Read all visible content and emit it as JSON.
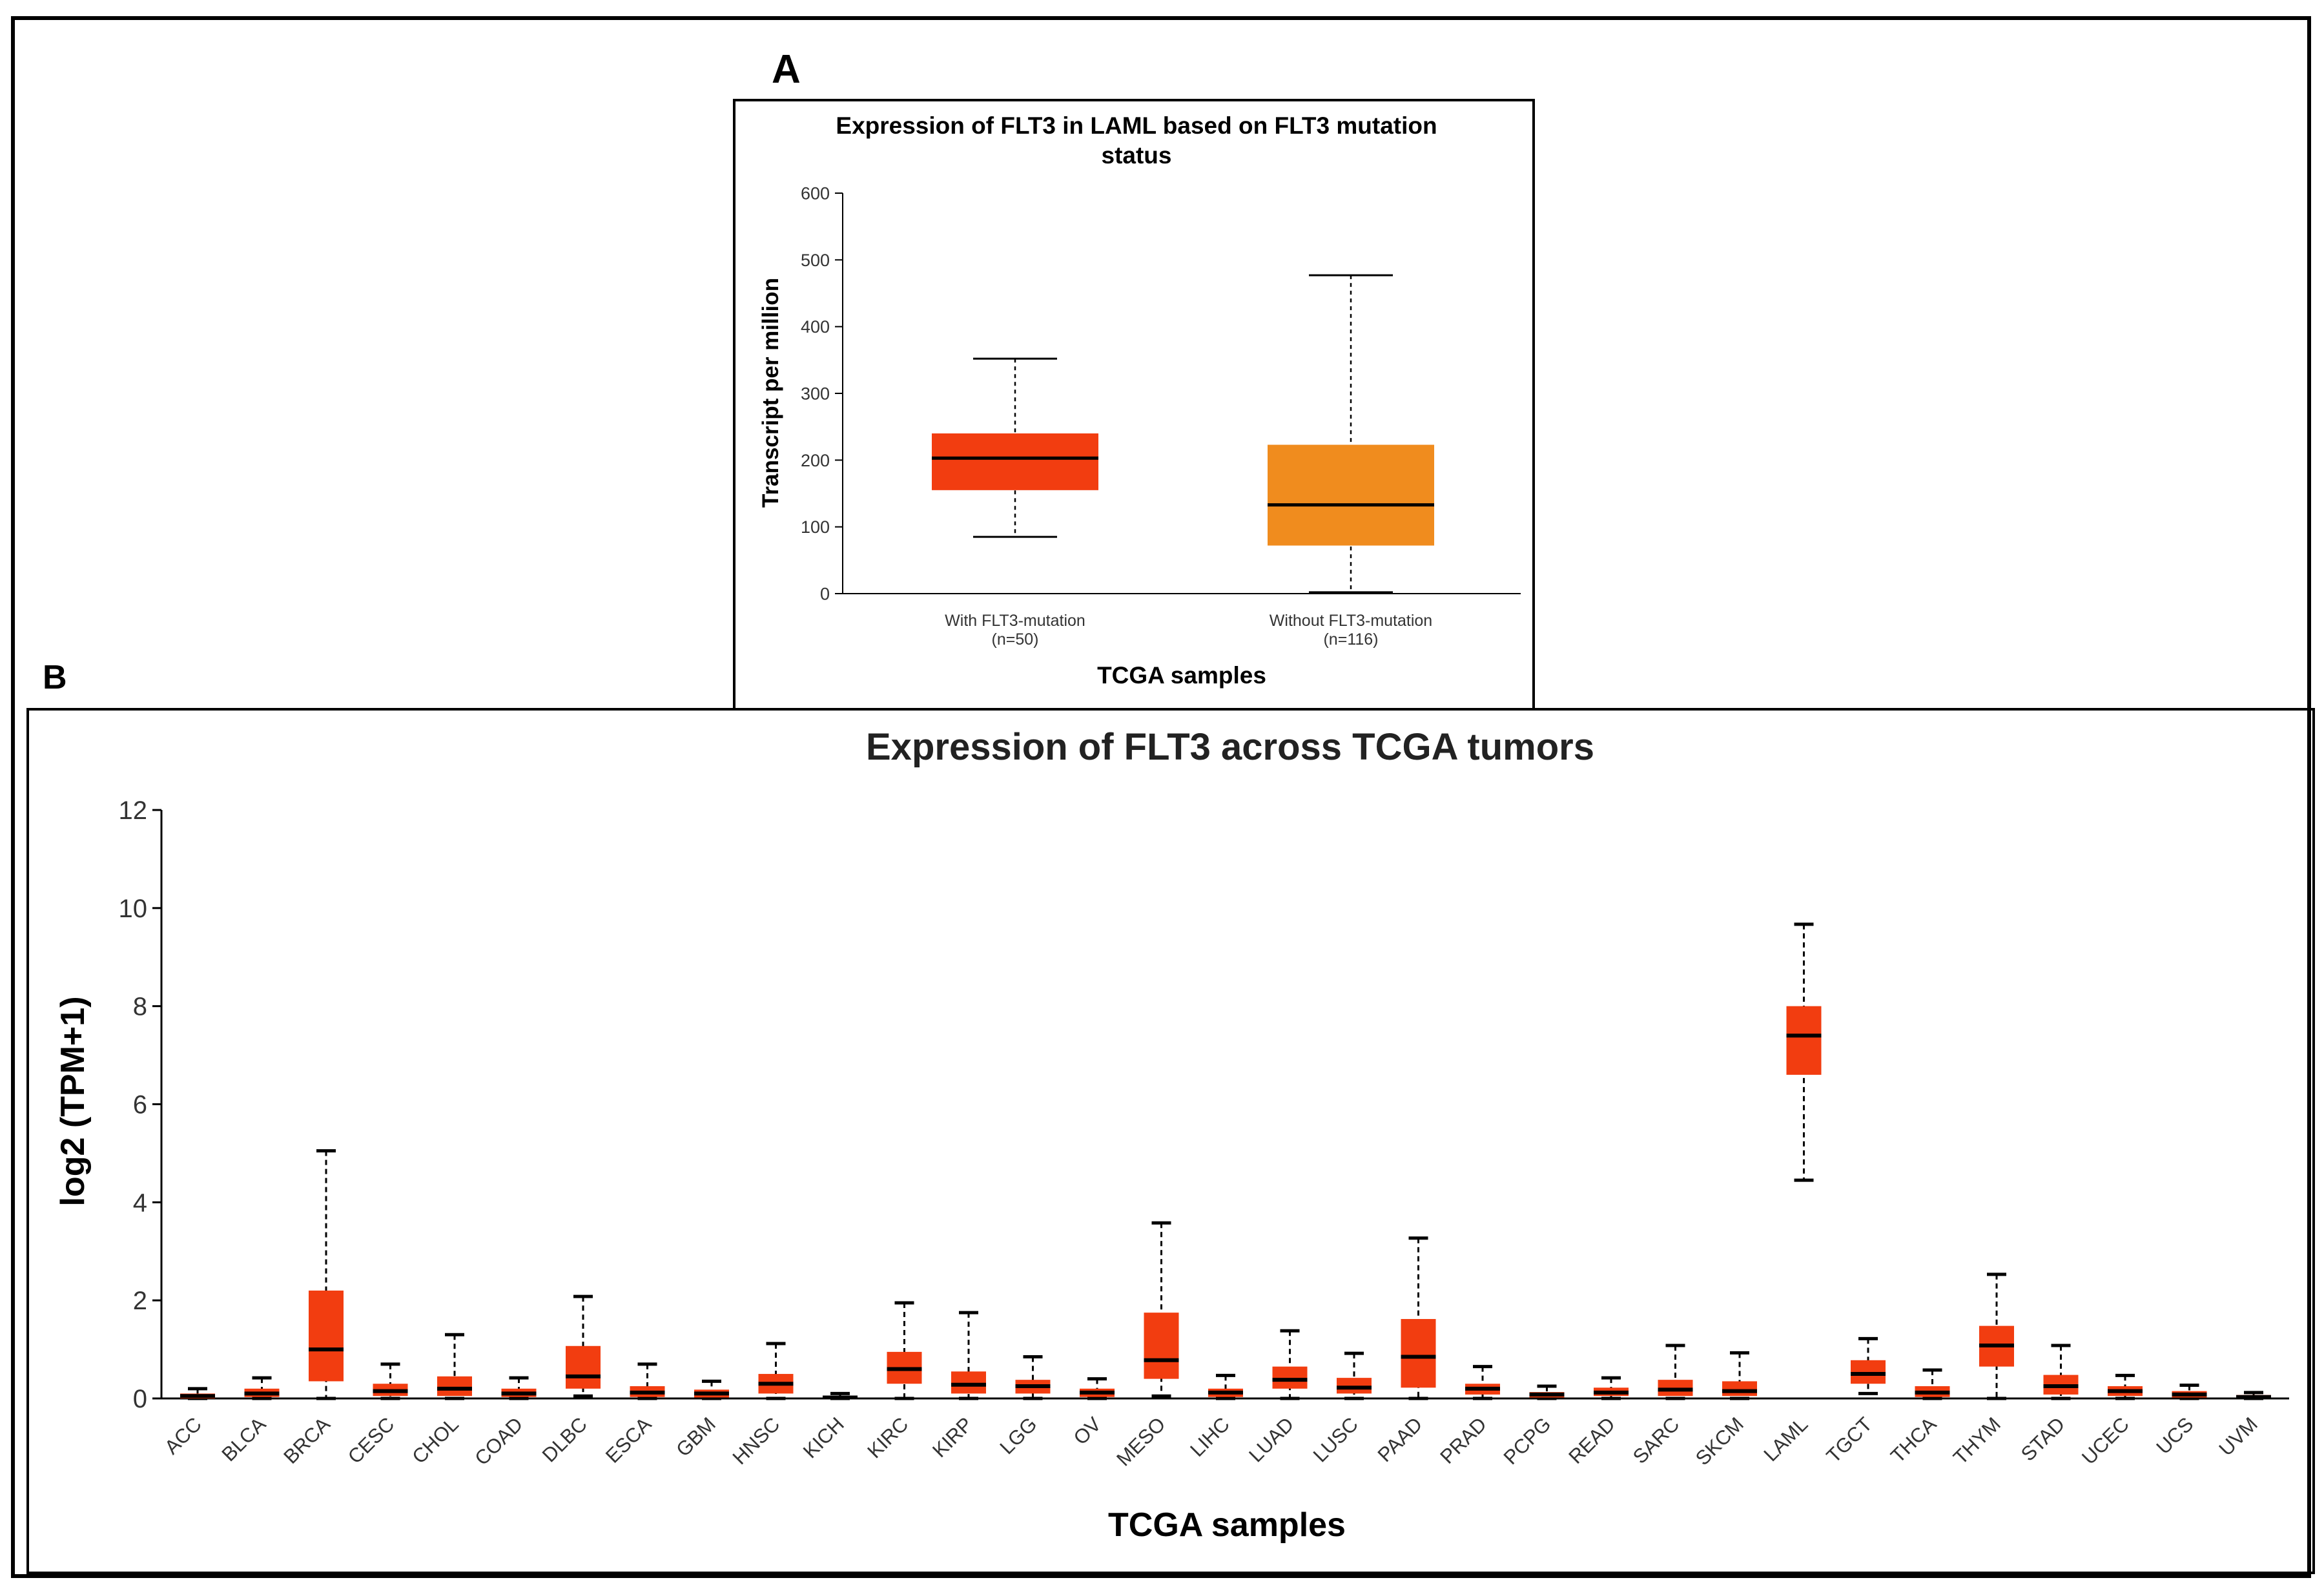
{
  "panels": {
    "a_label": "A",
    "b_label": "B"
  },
  "colors": {
    "red": "#f23d10",
    "orange": "#f08c1e",
    "median": "#000000",
    "frame": "#000000"
  },
  "chart_data": [
    {
      "type": "box",
      "panel": "A",
      "title_lines": [
        "Expression of FLT3 in LAML based on FLT3 mutation",
        "status"
      ],
      "xlabel": "TCGA samples",
      "ylabel": "Transcript per million",
      "ylim": [
        0,
        600
      ],
      "yticks": [
        0,
        100,
        200,
        300,
        400,
        500,
        600
      ],
      "categories": [
        {
          "label": "With FLT3-mutation",
          "n_label": "(n=50)",
          "min": 85,
          "q1": 155,
          "median": 203,
          "q3": 240,
          "max": 352,
          "color": "#f23d10"
        },
        {
          "label": "Without FLT3-mutation",
          "n_label": "(n=116)",
          "min": 2,
          "q1": 72,
          "median": 133,
          "q3": 223,
          "max": 477,
          "color": "#f08c1e"
        }
      ]
    },
    {
      "type": "box",
      "panel": "B",
      "title": "Expression of FLT3 across TCGA tumors",
      "xlabel": "TCGA samples",
      "ylabel": "log2 (TPM+1)",
      "ylim": [
        0,
        12
      ],
      "yticks": [
        0,
        2,
        4,
        6,
        8,
        10,
        12
      ],
      "categories": [
        {
          "label": "ACC",
          "min": 0,
          "q1": 0,
          "median": 0.05,
          "q3": 0.1,
          "max": 0.2
        },
        {
          "label": "BLCA",
          "min": 0,
          "q1": 0.03,
          "median": 0.1,
          "q3": 0.2,
          "max": 0.42
        },
        {
          "label": "BRCA",
          "min": 0,
          "q1": 0.35,
          "median": 1.0,
          "q3": 2.2,
          "max": 5.05
        },
        {
          "label": "CESC",
          "min": 0,
          "q1": 0.05,
          "median": 0.15,
          "q3": 0.3,
          "max": 0.7
        },
        {
          "label": "CHOL",
          "min": 0,
          "q1": 0.05,
          "median": 0.2,
          "q3": 0.45,
          "max": 1.3
        },
        {
          "label": "COAD",
          "min": 0,
          "q1": 0.03,
          "median": 0.1,
          "q3": 0.2,
          "max": 0.42
        },
        {
          "label": "DLBC",
          "min": 0.05,
          "q1": 0.2,
          "median": 0.45,
          "q3": 1.07,
          "max": 2.08
        },
        {
          "label": "ESCA",
          "min": 0,
          "q1": 0.03,
          "median": 0.12,
          "q3": 0.25,
          "max": 0.7
        },
        {
          "label": "GBM",
          "min": 0,
          "q1": 0.02,
          "median": 0.1,
          "q3": 0.18,
          "max": 0.35
        },
        {
          "label": "HNSC",
          "min": 0,
          "q1": 0.1,
          "median": 0.3,
          "q3": 0.5,
          "max": 1.12
        },
        {
          "label": "KICH",
          "min": 0,
          "q1": 0,
          "median": 0.02,
          "q3": 0.05,
          "max": 0.1
        },
        {
          "label": "KIRC",
          "min": 0,
          "q1": 0.3,
          "median": 0.6,
          "q3": 0.95,
          "max": 1.95
        },
        {
          "label": "KIRP",
          "min": 0,
          "q1": 0.1,
          "median": 0.28,
          "q3": 0.55,
          "max": 1.75
        },
        {
          "label": "LGG",
          "min": 0,
          "q1": 0.1,
          "median": 0.25,
          "q3": 0.38,
          "max": 0.85
        },
        {
          "label": "OV",
          "min": 0,
          "q1": 0.03,
          "median": 0.12,
          "q3": 0.2,
          "max": 0.4
        },
        {
          "label": "MESO",
          "min": 0.05,
          "q1": 0.4,
          "median": 0.78,
          "q3": 1.75,
          "max": 3.58
        },
        {
          "label": "LIHC",
          "min": 0,
          "q1": 0.03,
          "median": 0.12,
          "q3": 0.2,
          "max": 0.47
        },
        {
          "label": "LUAD",
          "min": 0,
          "q1": 0.2,
          "median": 0.38,
          "q3": 0.65,
          "max": 1.38
        },
        {
          "label": "LUSC",
          "min": 0,
          "q1": 0.1,
          "median": 0.22,
          "q3": 0.42,
          "max": 0.92
        },
        {
          "label": "PAAD",
          "min": 0,
          "q1": 0.22,
          "median": 0.85,
          "q3": 1.62,
          "max": 3.27
        },
        {
          "label": "PRAD",
          "min": 0,
          "q1": 0.08,
          "median": 0.2,
          "q3": 0.3,
          "max": 0.65
        },
        {
          "label": "PCPG",
          "min": 0,
          "q1": 0.02,
          "median": 0.08,
          "q3": 0.13,
          "max": 0.25
        },
        {
          "label": "READ",
          "min": 0,
          "q1": 0.05,
          "median": 0.12,
          "q3": 0.22,
          "max": 0.42
        },
        {
          "label": "SARC",
          "min": 0,
          "q1": 0.05,
          "median": 0.18,
          "q3": 0.38,
          "max": 1.08
        },
        {
          "label": "SKCM",
          "min": 0,
          "q1": 0.05,
          "median": 0.15,
          "q3": 0.35,
          "max": 0.93
        },
        {
          "label": "LAML",
          "min": 4.45,
          "q1": 6.6,
          "median": 7.4,
          "q3": 8.0,
          "max": 9.67
        },
        {
          "label": "TGCT",
          "min": 0.1,
          "q1": 0.3,
          "median": 0.5,
          "q3": 0.78,
          "max": 1.22
        },
        {
          "label": "THCA",
          "min": 0,
          "q1": 0.03,
          "median": 0.12,
          "q3": 0.25,
          "max": 0.58
        },
        {
          "label": "THYM",
          "min": 0,
          "q1": 0.65,
          "median": 1.08,
          "q3": 1.48,
          "max": 2.53
        },
        {
          "label": "STAD",
          "min": 0,
          "q1": 0.08,
          "median": 0.25,
          "q3": 0.48,
          "max": 1.08
        },
        {
          "label": "UCEC",
          "min": 0,
          "q1": 0.05,
          "median": 0.15,
          "q3": 0.25,
          "max": 0.47
        },
        {
          "label": "UCS",
          "min": 0,
          "q1": 0.02,
          "median": 0.08,
          "q3": 0.15,
          "max": 0.27
        },
        {
          "label": "UVM",
          "min": 0,
          "q1": 0,
          "median": 0.03,
          "q3": 0.07,
          "max": 0.12
        }
      ]
    }
  ]
}
